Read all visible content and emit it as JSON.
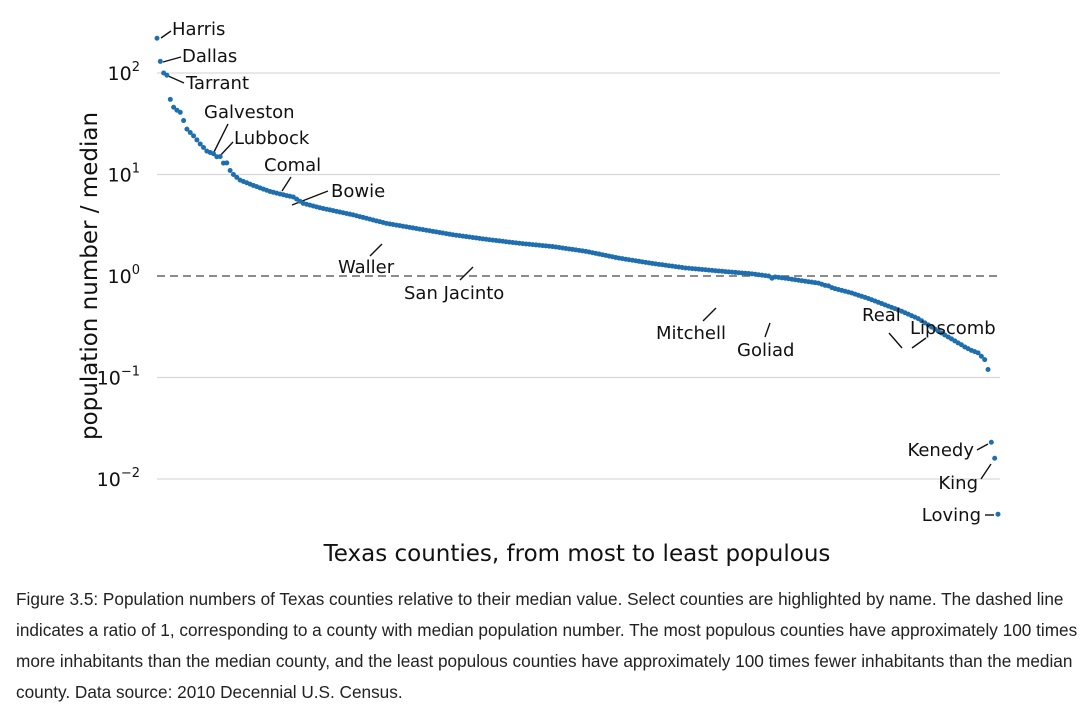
{
  "chart_data": {
    "type": "scatter",
    "title": "",
    "xlabel": "Texas counties, from most to least populous",
    "ylabel": "population number / median",
    "y_scale": "log10",
    "y_ticks": [
      {
        "value": 100,
        "base": "10",
        "exp": "2"
      },
      {
        "value": 10,
        "base": "10",
        "exp": "1"
      },
      {
        "value": 1,
        "base": "10",
        "exp": "0"
      },
      {
        "value": 0.1,
        "base": "10",
        "exp": "−1"
      },
      {
        "value": 0.01,
        "base": "10",
        "exp": "−2"
      }
    ],
    "ylim": [
      0.004,
      250
    ],
    "x_range": [
      1,
      254
    ],
    "grid": "horizontal",
    "reference_line": {
      "y": 1,
      "style": "dashed"
    },
    "point_color": "#1f6fb0",
    "n_points": 254,
    "ratio_profile": [
      [
        1,
        220
      ],
      [
        2,
        130
      ],
      [
        3,
        100
      ],
      [
        4,
        95
      ],
      [
        5,
        55
      ],
      [
        6,
        46
      ],
      [
        7,
        43
      ],
      [
        8,
        41
      ],
      [
        9,
        34
      ],
      [
        10,
        28
      ],
      [
        12,
        24
      ],
      [
        14,
        20
      ],
      [
        16,
        17
      ],
      [
        18,
        16
      ],
      [
        20,
        14
      ],
      [
        22,
        12
      ],
      [
        24,
        10
      ],
      [
        26,
        8.8
      ],
      [
        30,
        7.8
      ],
      [
        35,
        6.8
      ],
      [
        40,
        6.2
      ],
      [
        42,
        6
      ],
      [
        45,
        5.2
      ],
      [
        50,
        4.7
      ],
      [
        60,
        4
      ],
      [
        70,
        3.3
      ],
      [
        80,
        2.9
      ],
      [
        90,
        2.55
      ],
      [
        100,
        2.3
      ],
      [
        110,
        2.1
      ],
      [
        120,
        1.95
      ],
      [
        130,
        1.75
      ],
      [
        140,
        1.5
      ],
      [
        150,
        1.33
      ],
      [
        160,
        1.2
      ],
      [
        170,
        1.12
      ],
      [
        180,
        1.05
      ],
      [
        190,
        0.95
      ],
      [
        200,
        0.85
      ],
      [
        205,
        0.75
      ],
      [
        210,
        0.68
      ],
      [
        215,
        0.6
      ],
      [
        220,
        0.52
      ],
      [
        225,
        0.45
      ],
      [
        230,
        0.38
      ],
      [
        235,
        0.3
      ],
      [
        240,
        0.24
      ],
      [
        244,
        0.2
      ],
      [
        246,
        0.185
      ],
      [
        248,
        0.175
      ],
      [
        250,
        0.15
      ],
      [
        251,
        0.12
      ],
      [
        252,
        0.09
      ],
      [
        252.5,
        0.07
      ],
      [
        253,
        0.05
      ],
      [
        253.5,
        0.035
      ],
      [
        254,
        0.0045
      ]
    ],
    "highlighted": [
      {
        "name": "Harris",
        "rank": 1,
        "ratio": 220
      },
      {
        "name": "Dallas",
        "rank": 2,
        "ratio": 130
      },
      {
        "name": "Tarrant",
        "rank": 3,
        "ratio": 100
      },
      {
        "name": "Galveston",
        "rank": 20,
        "ratio": 15
      },
      {
        "name": "Lubbock",
        "rank": 22,
        "ratio": 13
      },
      {
        "name": "Comal",
        "rank": 42,
        "ratio": 6
      },
      {
        "name": "Bowie",
        "rank": 45,
        "ratio": 5.2
      },
      {
        "name": "Waller",
        "rank": 80,
        "ratio": 2.9
      },
      {
        "name": "San Jacinto",
        "rank": 110,
        "ratio": 2.1
      },
      {
        "name": "Mitchell",
        "rank": 186,
        "ratio": 0.95
      },
      {
        "name": "Goliad",
        "rank": 203,
        "ratio": 0.8
      },
      {
        "name": "Real",
        "rank": 240,
        "ratio": 0.24
      },
      {
        "name": "Lipscomb",
        "rank": 243,
        "ratio": 0.21
      },
      {
        "name": "Kenedy",
        "rank": 252,
        "ratio": 0.023
      },
      {
        "name": "King",
        "rank": 253,
        "ratio": 0.016
      },
      {
        "name": "Loving",
        "rank": 254,
        "ratio": 0.0045
      }
    ]
  },
  "caption": "Figure 3.5: Population numbers of Texas counties relative to their median value. Select counties are highlighted by name. The dashed line indicates a ratio of 1, corresponding to a county with median population number. The most populous counties have approximately 100 times more inhabitants than the median county, and the least populous counties have approximately 100 times fewer inhabitants than the median county. Data source: 2010 Decennial U.S. Census."
}
